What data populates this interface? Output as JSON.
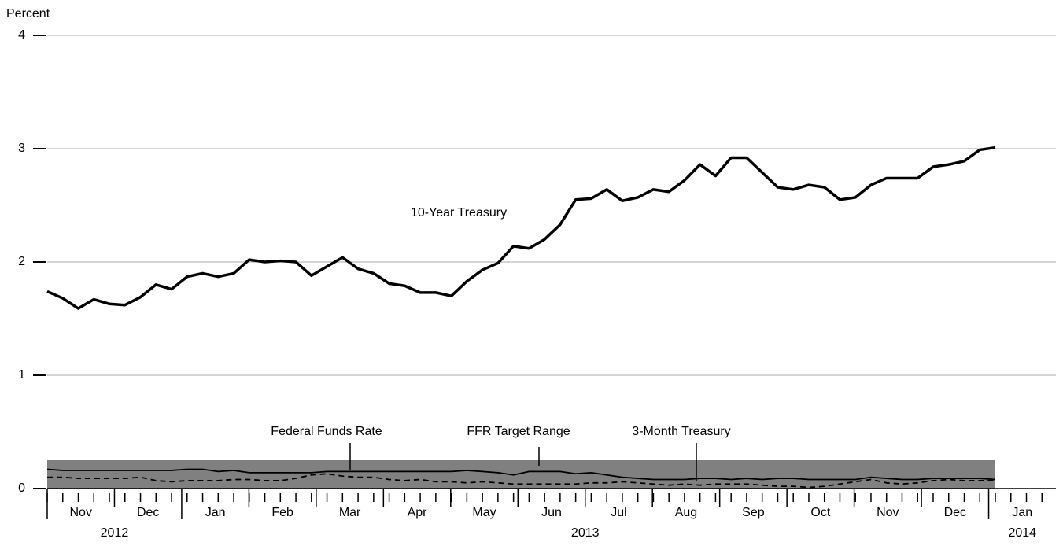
{
  "chart_data": {
    "type": "line",
    "y_label": "Percent",
    "categories": [
      null,
      null,
      null,
      null,
      null,
      null,
      null,
      null,
      null,
      null,
      null,
      null,
      null,
      null,
      null,
      null,
      null,
      null,
      null,
      null,
      null,
      null,
      null,
      null,
      null,
      null,
      null,
      null,
      null,
      null,
      null,
      null,
      null,
      null,
      null,
      null,
      null,
      null,
      null,
      null,
      null,
      null,
      null,
      null,
      null,
      null,
      null,
      null,
      null,
      null,
      null,
      null,
      null,
      null,
      null,
      null,
      null,
      null,
      null,
      null,
      null,
      null
    ],
    "x_months": [
      "Nov",
      "Dec",
      "Jan",
      "Feb",
      "Mar",
      "Apr",
      "May",
      "Jun",
      "Jul",
      "Aug",
      "Sep",
      "Oct",
      "Nov",
      "Dec",
      "Jan"
    ],
    "x_years": [
      "2012",
      "2013",
      "2014"
    ],
    "series": [
      {
        "name": "10-Year Treasury",
        "color": "#000000",
        "line_style": "solid",
        "values": [
          1.74,
          1.68,
          1.59,
          1.67,
          1.63,
          1.62,
          1.69,
          1.8,
          1.76,
          1.87,
          1.9,
          1.87,
          1.9,
          2.02,
          2.0,
          2.01,
          2.0,
          1.88,
          1.96,
          2.04,
          1.94,
          1.9,
          1.81,
          1.79,
          1.73,
          1.73,
          1.7,
          1.83,
          1.93,
          1.99,
          2.14,
          2.12,
          2.2,
          2.33,
          2.55,
          2.56,
          2.64,
          2.54,
          2.57,
          2.64,
          2.62,
          2.72,
          2.86,
          2.76,
          2.92,
          2.92,
          2.79,
          2.66,
          2.64,
          2.68,
          2.66,
          2.55,
          2.57,
          2.68,
          2.74,
          2.74,
          2.74,
          2.84,
          2.86,
          2.89,
          2.99,
          3.01
        ]
      },
      {
        "name": "Federal Funds Rate",
        "color": "#000000",
        "line_style": "solid",
        "values": [
          0.17,
          0.16,
          0.16,
          0.16,
          0.16,
          0.16,
          0.16,
          0.16,
          0.16,
          0.17,
          0.17,
          0.15,
          0.16,
          0.14,
          0.14,
          0.14,
          0.14,
          0.14,
          0.15,
          0.15,
          0.15,
          0.15,
          0.15,
          0.15,
          0.15,
          0.15,
          0.15,
          0.16,
          0.15,
          0.14,
          0.12,
          0.15,
          0.15,
          0.15,
          0.13,
          0.14,
          0.12,
          0.1,
          0.09,
          0.08,
          0.08,
          0.08,
          0.09,
          0.09,
          0.08,
          0.09,
          0.08,
          0.09,
          0.09,
          0.08,
          0.08,
          0.08,
          0.08,
          0.1,
          0.09,
          0.08,
          0.08,
          0.09,
          0.09,
          0.09,
          0.09,
          0.08
        ]
      },
      {
        "name": "3-Month Treasury",
        "color": "#000000",
        "line_style": "dashed",
        "values": [
          0.1,
          0.1,
          0.09,
          0.09,
          0.09,
          0.09,
          0.1,
          0.07,
          0.06,
          0.07,
          0.07,
          0.07,
          0.08,
          0.08,
          0.07,
          0.07,
          0.09,
          0.12,
          0.13,
          0.11,
          0.1,
          0.1,
          0.08,
          0.07,
          0.08,
          0.06,
          0.06,
          0.05,
          0.06,
          0.05,
          0.04,
          0.04,
          0.04,
          0.04,
          0.04,
          0.05,
          0.05,
          0.06,
          0.05,
          0.04,
          0.03,
          0.04,
          0.03,
          0.04,
          0.04,
          0.04,
          0.03,
          0.02,
          0.02,
          0.01,
          0.02,
          0.04,
          0.06,
          0.08,
          0.05,
          0.04,
          0.05,
          0.07,
          0.08,
          0.07,
          0.07,
          0.07
        ]
      }
    ],
    "target_range": {
      "name": "FFR Target Range",
      "color": "#808080",
      "values": [
        0,
        0.25
      ]
    },
    "ylim": [
      0,
      4
    ],
    "yticks": [
      0,
      1,
      2,
      3,
      4
    ],
    "grid": true
  }
}
